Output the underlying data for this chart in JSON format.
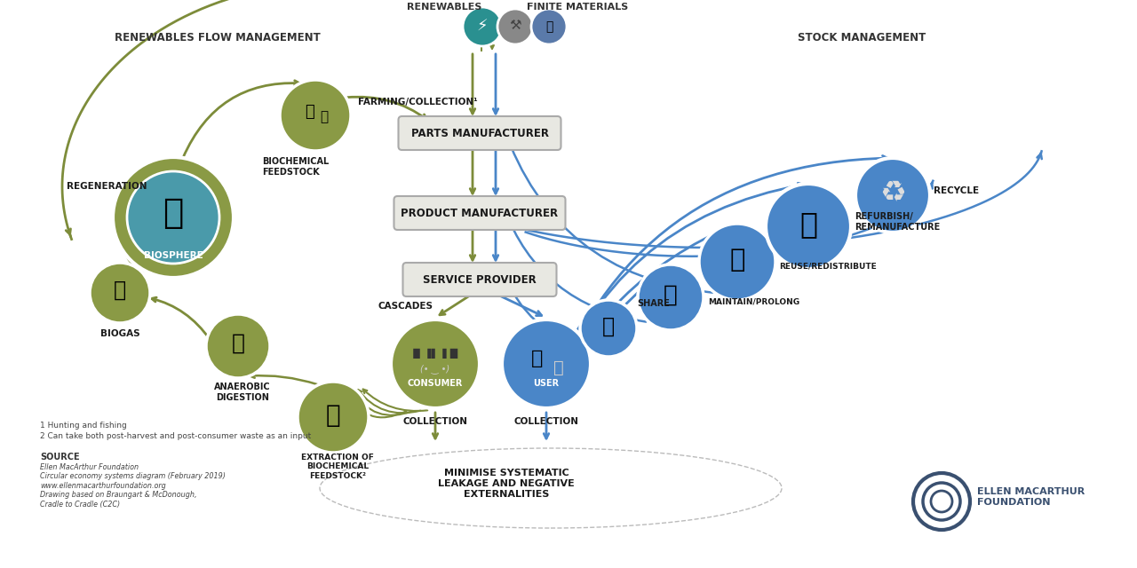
{
  "bg_color": "#FFFFFF",
  "olive": "#7d8c3a",
  "olive_circle": "#8a9a45",
  "blue": "#4a86c8",
  "blue_dark": "#3a6aaa",
  "teal": "#2a9090",
  "gray_icon": "#9a9a9a",
  "box_fill": "#e8e8e2",
  "box_edge": "#aaaaaa",
  "text_col": "#1a1a1a",
  "header_left_text": "RENEWABLES FLOW MANAGEMENT",
  "header_right_text": "STOCK MANAGEMENT",
  "renewables_text": "RENEWABLES",
  "finite_text": "FINITE MATERIALS",
  "parts_text": "PARTS MANUFACTURER",
  "product_text": "PRODUCT MANUFACTURER",
  "service_text": "SERVICE PROVIDER",
  "consumer_text": "CONSUMER",
  "user_text": "USER",
  "biosphere_text": "BIOSPHERE",
  "farming_text": "FARMING/COLLECTION¹",
  "biogas_text": "BIOGAS",
  "anaerobic_text": "ANAEROBIC\nDIGESTION",
  "extraction_text": "EXTRACTION OF\nBIOCHEMICAL\nFEEDSTOCK²",
  "biochem_text": "BIOCHEMICAL\nFEEDSTOCK",
  "regeneration_text": "REGENERATION",
  "cascades_text": "CASCADES",
  "collection_text": "COLLECTION",
  "share_text": "SHARE",
  "maintain_text": "MAINTAIN/PROLONG",
  "reuse_text": "REUSE/REDISTRIBUTE",
  "refurbish_text": "REFURBISH/\nREMANUFACTURE",
  "recycle_text": "RECYCLE",
  "bottom_text": "MINIMISE SYSTEMATIC\nLEAKAGE AND NEGATIVE\nEXTERNALITIES",
  "emf_text": "ELLEN MACARTHUR\nFOUNDATION",
  "footnote1": "1 Hunting and fishing",
  "footnote2": "2 Can take both post-harvest and post-consumer waste as an input",
  "source_bold": "SOURCE",
  "source_body": "Ellen MacArthur Foundation\nCircular economy systems diagram (February 2019)\nwww.ellenmacarthurfoundation.org\nDrawing based on Braungart & McDonough,\nCradle to Cradle (C2C)"
}
